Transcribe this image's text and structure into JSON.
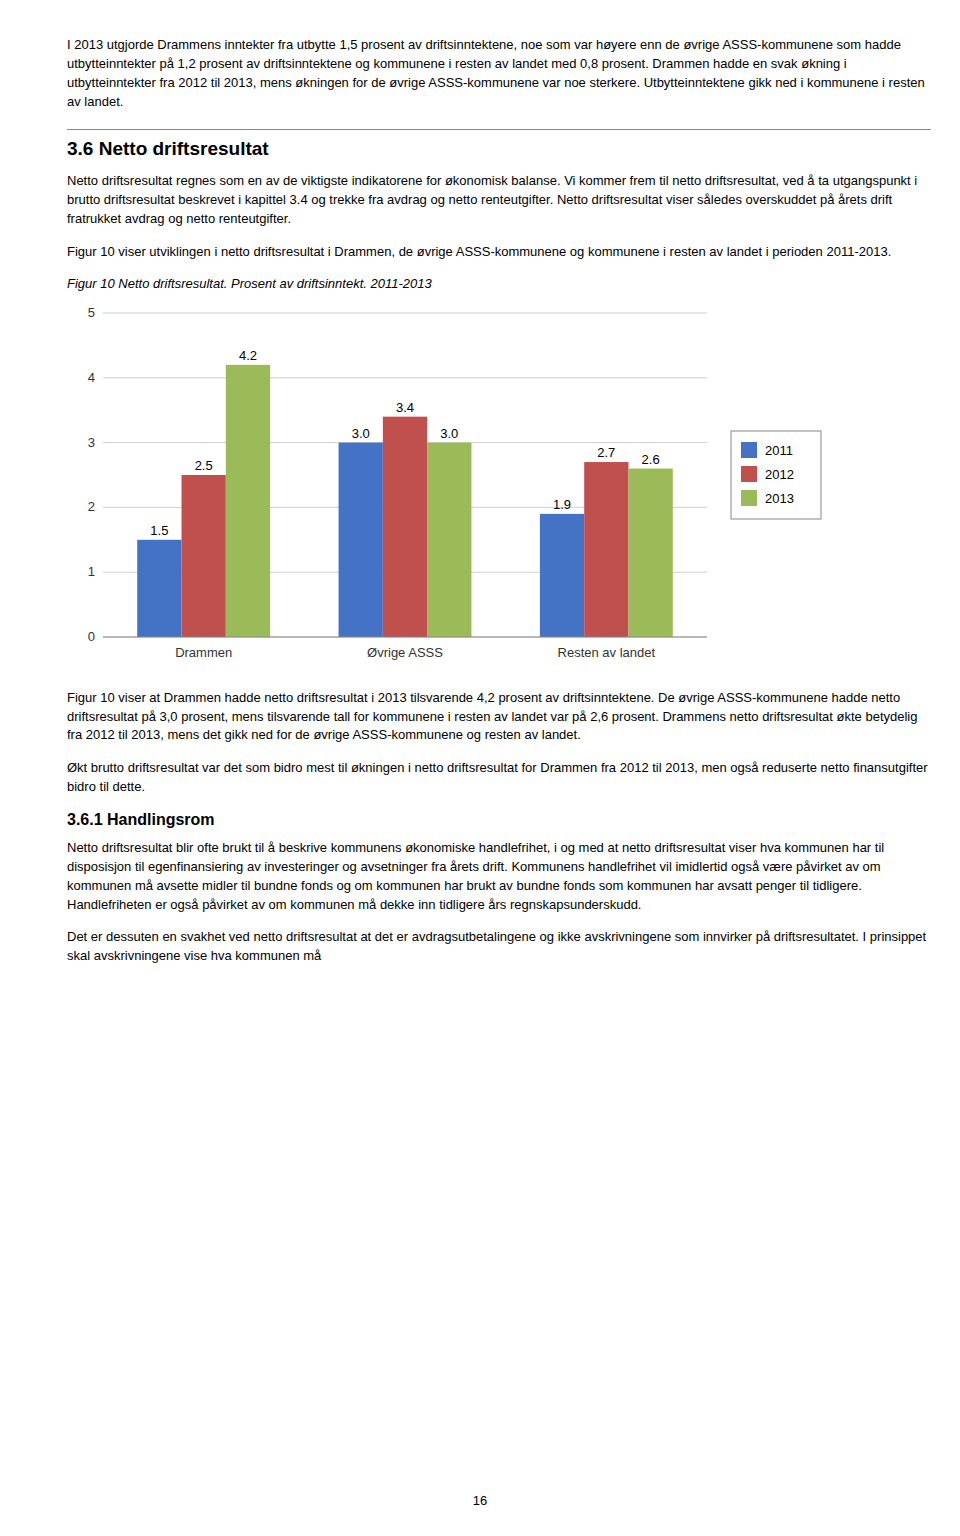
{
  "top_text": "I 2013 utgjorde Drammens inntekter fra utbytte 1,5 prosent av driftsinntektene, noe som var høyere enn de øvrige ASSS-kommunene som hadde utbytteinntekter på 1,2 prosent av driftsinntektene og kommunene i resten av landet med 0,8 prosent. Drammen hadde en svak økning i utbytteinntekter fra 2012 til 2013, mens økningen for de øvrige ASSS-kommunene var noe sterkere. Utbytteinntektene gikk ned i kommunene i resten av landet.",
  "section_heading": "3.6  Netto driftsresultat",
  "section_text1": "Netto driftsresultat regnes som en av de viktigste indikatorene for økonomisk balanse. Vi kommer frem til netto driftsresultat, ved å ta utgangspunkt i brutto driftsresultat beskrevet i kapittel 3.4 og trekke fra avdrag og netto renteutgifter. Netto driftsresultat viser således overskuddet på årets drift fratrukket avdrag og netto renteutgifter.",
  "figur_intro": "Figur 10 viser utviklingen i netto driftsresultat i Drammen, de øvrige ASSS-kommunene og kommunene i resten av landet i perioden 2011-2013.",
  "after_chart_text": "Figur 10 viser at Drammen hadde netto driftsresultat i 2013 tilsvarende 4,2 prosent av driftsinntektene. De øvrige ASSS-kommunene hadde netto driftsresultat på 3,0 prosent, mens tilsvarende tall for kommunene i resten av landet var på 2,6 prosent. Drammens netto driftsresultat økte betydelig fra 2012 til 2013, mens det gikk ned for de øvrige ASSS-kommunene og resten av landet.",
  "after_chart_text2": "Økt brutto driftsresultat var det som bidro mest til økningen i netto driftsresultat for Drammen fra 2012 til 2013, men også reduserte netto finansutgifter bidro til dette.",
  "subheading2": "3.6.1  Handlingsrom",
  "bottom_text": "Netto driftsresultat blir ofte brukt til å beskrive kommunens økonomiske handlefrihet, i og med at netto driftsresultat viser hva kommunen har til disposisjon til egenfinansiering av investeringer og avsetninger fra årets drift. Kommunens handlefrihet vil imidlertid også være påvirket av om kommunen må avsette midler til bundne fonds og om kommunen har brukt av bundne fonds som kommunen har avsatt penger til tidligere. Handlefriheten er også påvirket av om kommunen må dekke inn tidligere års regnskapsunderskudd.",
  "bottom_text2": "Det er dessuten en svakhet ved netto driftsresultat at det er avdragsutbetalingene og ikke avskrivningene som innvirker på driftsresultatet. I prinsippet skal avskrivningene vise hva kommunen må",
  "page_number": "16",
  "chart_data": {
    "type": "bar",
    "title": "Figur 10 Netto driftsresultat. Prosent av driftsinntekt. 2011-2013",
    "categories": [
      "Drammen",
      "Øvrige ASSS",
      "Resten av landet"
    ],
    "series": [
      {
        "name": "2011",
        "color": "#4472C4",
        "values": [
          1.5,
          3.0,
          1.9
        ]
      },
      {
        "name": "2012",
        "color": "#C0504D",
        "values": [
          2.5,
          3.4,
          2.7
        ]
      },
      {
        "name": "2013",
        "color": "#9BBB59",
        "values": [
          4.2,
          3.0,
          2.6
        ]
      }
    ],
    "ylim": [
      0,
      5
    ],
    "yticks": [
      0,
      1,
      2,
      3,
      4,
      5
    ],
    "grid": true,
    "legend": "right",
    "data_labels": true
  }
}
